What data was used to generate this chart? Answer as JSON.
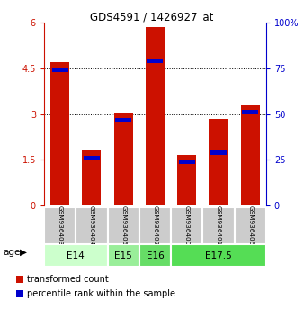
{
  "title": "GDS4591 / 1426927_at",
  "samples": [
    "GSM936403",
    "GSM936404",
    "GSM936405",
    "GSM936402",
    "GSM936400",
    "GSM936401",
    "GSM936406"
  ],
  "transformed_counts": [
    4.7,
    1.8,
    3.05,
    5.85,
    1.65,
    2.85,
    3.3
  ],
  "percentile_ranks": [
    75,
    27,
    48,
    80,
    25,
    30,
    52
  ],
  "age_groups": [
    {
      "label": "E14",
      "samples": [
        0,
        1
      ],
      "color": "#ccffcc"
    },
    {
      "label": "E15",
      "samples": [
        2
      ],
      "color": "#99ee99"
    },
    {
      "label": "E16",
      "samples": [
        3
      ],
      "color": "#66dd66"
    },
    {
      "label": "E17.5",
      "samples": [
        4,
        5,
        6
      ],
      "color": "#55dd55"
    }
  ],
  "left_ylim": [
    0,
    6
  ],
  "left_yticks": [
    0,
    1.5,
    3,
    4.5,
    6
  ],
  "left_yticklabels": [
    "0",
    "1.5",
    "3",
    "4.5",
    "6"
  ],
  "right_ylim": [
    0,
    100
  ],
  "right_yticks": [
    0,
    25,
    50,
    75,
    100
  ],
  "right_yticklabels": [
    "0",
    "25",
    "50",
    "75",
    "100%"
  ],
  "bar_color_red": "#cc1100",
  "bar_color_blue": "#0000cc",
  "bar_width": 0.6,
  "legend_red_label": "transformed count",
  "legend_blue_label": "percentile rank within the sample",
  "age_label": "age",
  "bg_color_sample": "#cccccc"
}
